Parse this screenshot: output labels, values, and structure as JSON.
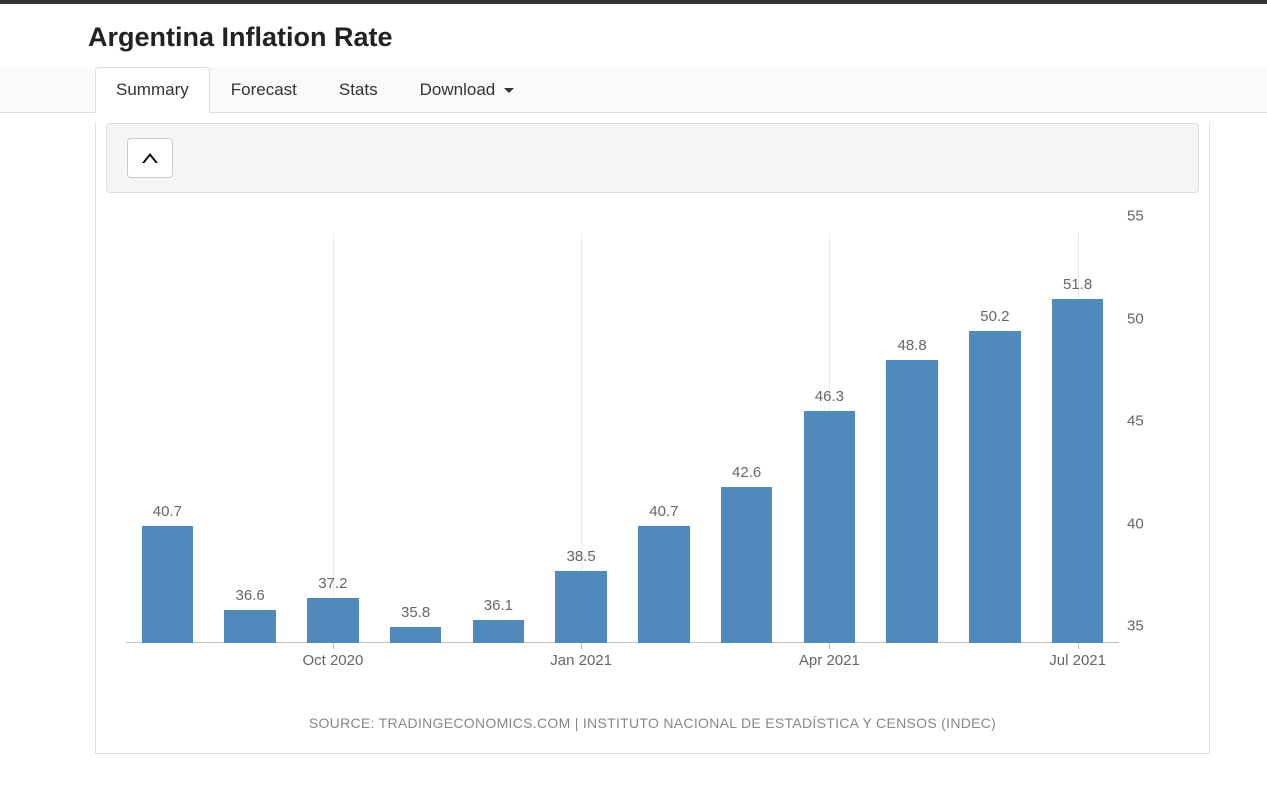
{
  "header": {
    "title": "Argentina Inflation Rate"
  },
  "tabs": {
    "items": [
      {
        "label": "Summary",
        "active": true,
        "has_caret": false
      },
      {
        "label": "Forecast",
        "active": false,
        "has_caret": false
      },
      {
        "label": "Stats",
        "active": false,
        "has_caret": false
      },
      {
        "label": "Download",
        "active": false,
        "has_caret": true
      }
    ]
  },
  "chart": {
    "type": "bar",
    "bar_color": "#5089bb",
    "label_color": "#666666",
    "label_fontsize": 15,
    "grid_color": "#ebebeb",
    "baseline_color": "#c0c0c0",
    "background_color": "#ffffff",
    "ylim": [
      35,
      55
    ],
    "yticks": [
      35,
      40,
      45,
      50,
      55
    ],
    "bar_width_pct": 5.2,
    "bar_gap_pct": 8.333,
    "series": [
      {
        "value": 40.7,
        "label": "40.7"
      },
      {
        "value": 36.6,
        "label": "36.6"
      },
      {
        "value": 37.2,
        "label": "37.2"
      },
      {
        "value": 35.8,
        "label": "35.8"
      },
      {
        "value": 36.1,
        "label": "36.1"
      },
      {
        "value": 38.5,
        "label": "38.5"
      },
      {
        "value": 40.7,
        "label": "40.7"
      },
      {
        "value": 42.6,
        "label": "42.6"
      },
      {
        "value": 46.3,
        "label": "46.3"
      },
      {
        "value": 48.8,
        "label": "48.8"
      },
      {
        "value": 50.2,
        "label": "50.2"
      },
      {
        "value": 51.8,
        "label": "51.8"
      }
    ],
    "x_ticks": [
      {
        "label": "Oct 2020",
        "at_index": 2
      },
      {
        "label": "Jan 2021",
        "at_index": 5
      },
      {
        "label": "Apr 2021",
        "at_index": 8
      },
      {
        "label": "Jul 2021",
        "at_index": 11
      }
    ],
    "source": "SOURCE: TRADINGECONOMICS.COM | INSTITUTO NACIONAL DE ESTADÍSTICA Y CENSOS (INDEC)"
  }
}
